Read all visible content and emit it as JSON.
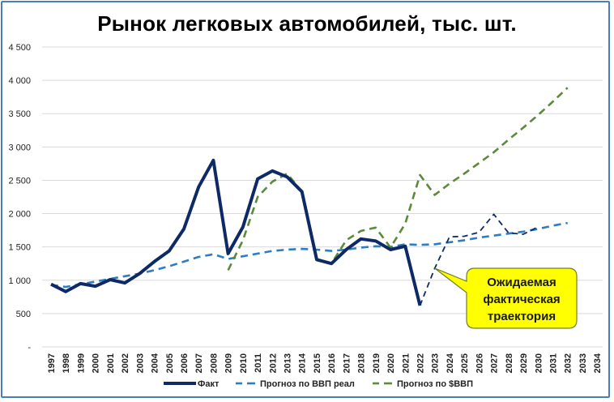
{
  "chart_data": {
    "type": "line",
    "title": "Рынок легковых автомобилей, тыс. шт.",
    "xlabel": "",
    "ylabel": "",
    "ylim": [
      0,
      4500
    ],
    "yticks": [
      0,
      500,
      1000,
      1500,
      2000,
      2500,
      3000,
      3500,
      4000,
      4500
    ],
    "ytick_labels": [
      "-",
      "500",
      "1 000",
      "1 500",
      "2 000",
      "2 500",
      "3 000",
      "3 500",
      "4 000",
      "4 500"
    ],
    "grid": true,
    "legend_position": "bottom",
    "x": [
      1997,
      1998,
      1999,
      2000,
      2001,
      2002,
      2003,
      2004,
      2005,
      2006,
      2007,
      2008,
      2009,
      2010,
      2011,
      2012,
      2013,
      2014,
      2015,
      2016,
      2017,
      2018,
      2019,
      2020,
      2021,
      2022,
      2023,
      2024,
      2025,
      2026,
      2027,
      2028,
      2029,
      2030,
      2031,
      2032,
      2033,
      2034
    ],
    "series": [
      {
        "name": "Факт",
        "color": "#0d2a66",
        "style": "solid",
        "x": [
          1997,
          1998,
          1999,
          2000,
          2001,
          2002,
          2003,
          2004,
          2005,
          2006,
          2007,
          2008,
          2009,
          2010,
          2011,
          2012,
          2013,
          2014,
          2015,
          2016,
          2017,
          2018,
          2019,
          2020,
          2021,
          2022
        ],
        "values": [
          940,
          830,
          950,
          910,
          1010,
          960,
          1100,
          1280,
          1440,
          1770,
          2400,
          2800,
          1400,
          1800,
          2520,
          2640,
          2550,
          2330,
          1310,
          1250,
          1460,
          1620,
          1590,
          1460,
          1510,
          620
        ]
      },
      {
        "name": "Прогноз по ВВП реал",
        "color": "#2e7dc0",
        "style": "dashed",
        "x": [
          1997,
          1998,
          1999,
          2000,
          2001,
          2002,
          2003,
          2004,
          2005,
          2006,
          2007,
          2008,
          2009,
          2010,
          2011,
          2012,
          2013,
          2014,
          2015,
          2016,
          2017,
          2018,
          2019,
          2020,
          2021,
          2022,
          2023,
          2024,
          2025,
          2026,
          2027,
          2028,
          2029,
          2030,
          2031,
          2032
        ],
        "values": [
          930,
          900,
          940,
          980,
          1020,
          1060,
          1100,
          1150,
          1210,
          1280,
          1350,
          1390,
          1320,
          1360,
          1400,
          1440,
          1460,
          1470,
          1460,
          1440,
          1460,
          1490,
          1510,
          1500,
          1540,
          1530,
          1540,
          1570,
          1600,
          1640,
          1670,
          1700,
          1730,
          1770,
          1820,
          1860
        ]
      },
      {
        "name": "Прогноз по $ВВП",
        "color": "#5a8a3a",
        "style": "dashed",
        "x": [
          2009,
          2010,
          2011,
          2012,
          2013,
          2014,
          2015,
          2016,
          2017,
          2018,
          2019,
          2020,
          2021,
          2022,
          2023,
          2024,
          2025,
          2026,
          2027,
          2028,
          2029,
          2030,
          2031,
          2032
        ],
        "values": [
          1150,
          1600,
          2250,
          2480,
          2600,
          2330,
          1300,
          1250,
          1600,
          1740,
          1790,
          1490,
          1850,
          2580,
          2280,
          2450,
          2600,
          2760,
          2920,
          3110,
          3290,
          3480,
          3680,
          3890
        ]
      },
      {
        "name": "Ожидаемая фактическая траектория",
        "color": "#0d2a66",
        "style": "thin-dashed",
        "in_legend": false,
        "x": [
          2022,
          2023,
          2024,
          2025,
          2026,
          2027,
          2028,
          2029,
          2030
        ],
        "values": [
          620,
          1180,
          1650,
          1660,
          1720,
          1990,
          1710,
          1690,
          1800
        ]
      }
    ],
    "annotations": [
      {
        "text": "Ожидаемая фактическая траектория",
        "lines": [
          "Ожидаемая",
          "фактическая",
          "траектория"
        ],
        "style": "yellow callout",
        "points_to": [
          2023,
          1180
        ]
      }
    ]
  },
  "legend": {
    "items": [
      {
        "label": "Факт"
      },
      {
        "label": "Прогноз по ВВП реал"
      },
      {
        "label": "Прогноз по $ВВП"
      }
    ]
  }
}
